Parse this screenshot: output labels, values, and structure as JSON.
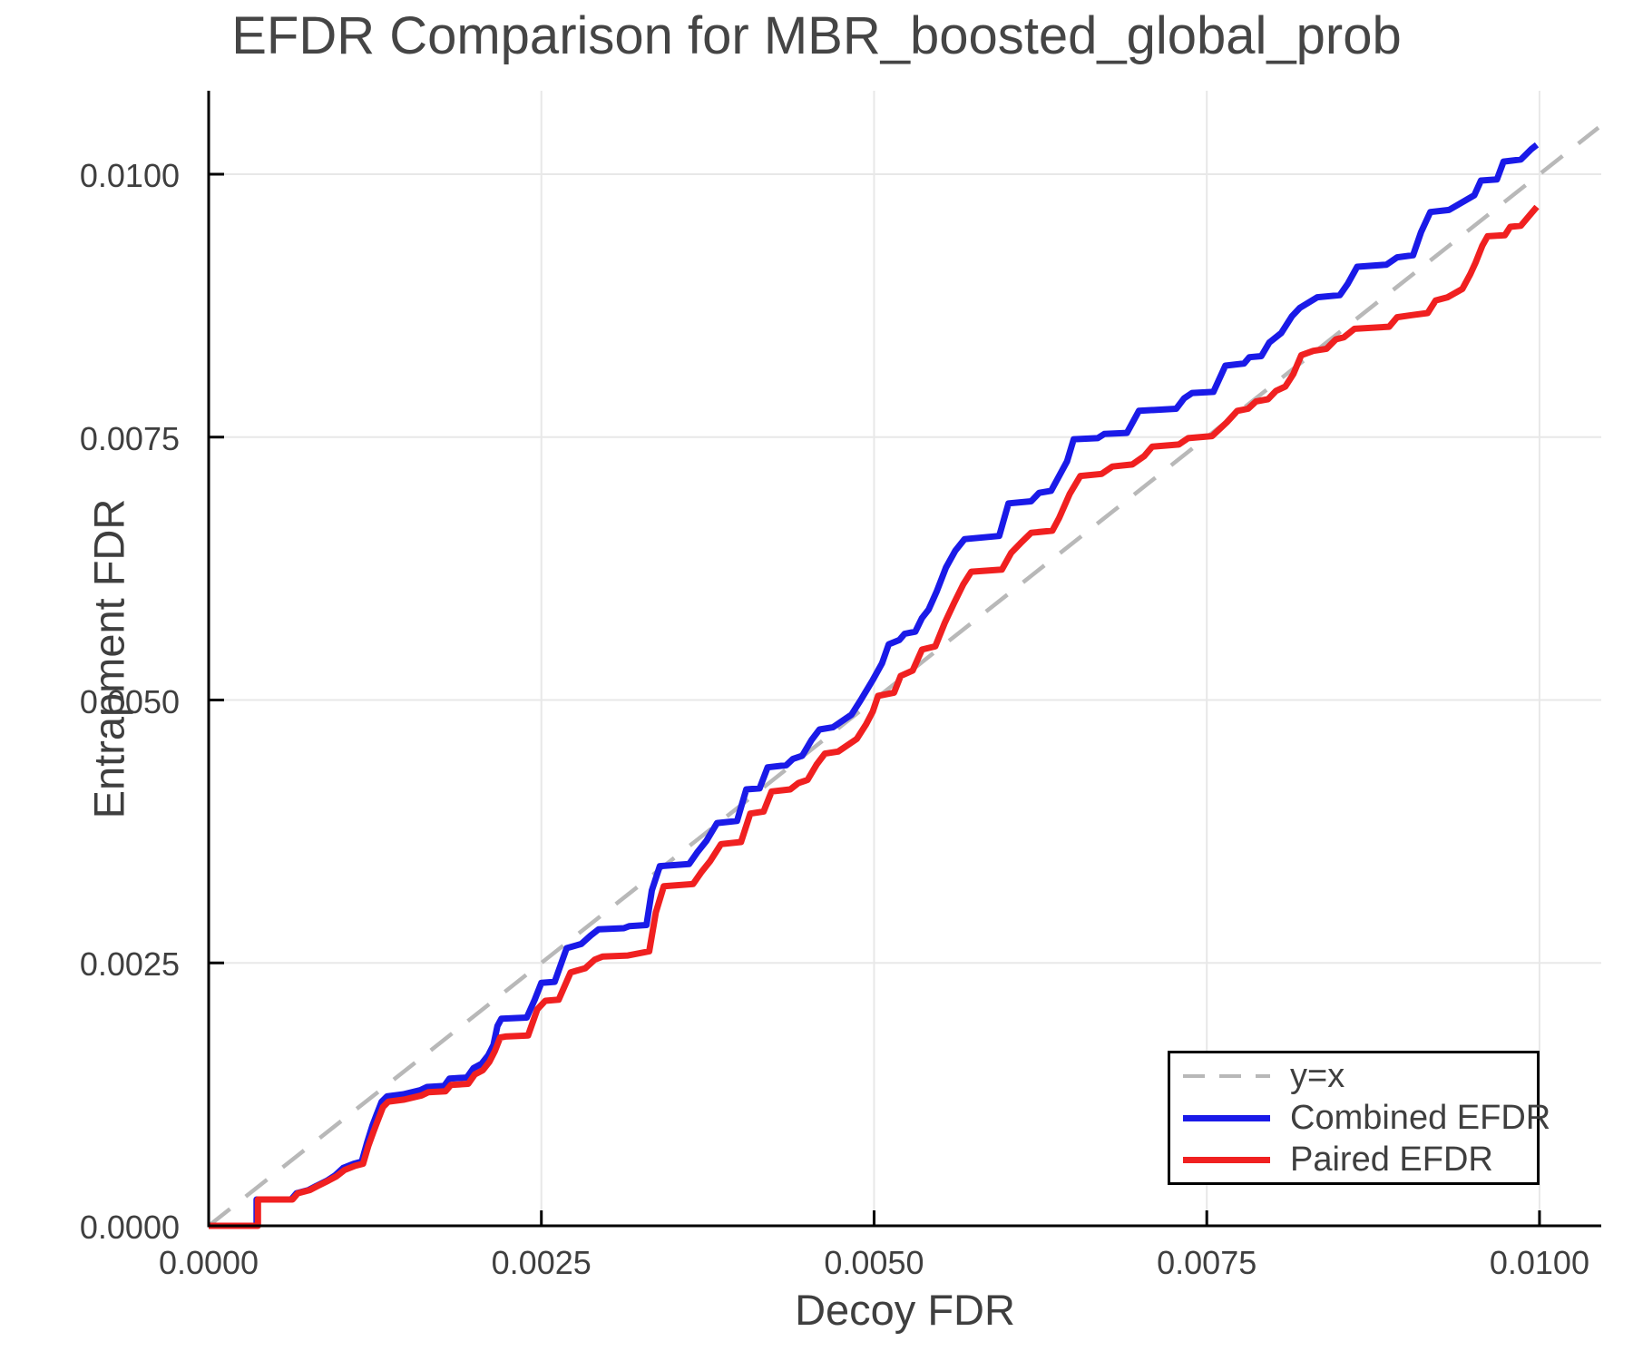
{
  "title": "EFDR Comparison for MBR_boosted_global_prob",
  "colors": {
    "combined": "#1a1ae8",
    "paired": "#f02020",
    "identity": "#b8b8b8",
    "grid": "#e8e8e8",
    "axis": "#000000",
    "text": "#3f3f3f"
  },
  "legend": {
    "entries": [
      "y=x",
      "Combined EFDR",
      "Paired EFDR"
    ]
  },
  "chart_data": {
    "type": "line",
    "title": "EFDR Comparison for MBR_boosted_global_prob",
    "xlabel": "Decoy FDR",
    "ylabel": "Entrapment FDR",
    "xlim": [
      0,
      0.010464
    ],
    "ylim": [
      0,
      0.010794
    ],
    "grid": true,
    "legend_position": "bottom-right",
    "x_ticks": [
      0,
      0.0025,
      0.005,
      0.0075,
      0.01
    ],
    "x_tick_labels": [
      "0.0000",
      "0.0025",
      "0.0050",
      "0.0075",
      "0.0100"
    ],
    "y_ticks": [
      0,
      0.0025,
      0.005,
      0.0075,
      0.01
    ],
    "y_tick_labels": [
      "0.0000",
      "0.0025",
      "0.0050",
      "0.0075",
      "0.0100"
    ],
    "series": [
      {
        "name": "y=x",
        "color": "#b8b8b8",
        "style": "dashed",
        "width": 4.5,
        "points": [
          [
            0,
            0
          ],
          [
            0.010443,
            0.010443
          ]
        ]
      },
      {
        "name": "Combined EFDR",
        "color": "#1a1ae8",
        "style": "solid",
        "width": 7,
        "points": [
          [
            0.0,
            0.0
          ],
          [
            0.00036,
            0.0
          ],
          [
            0.00036,
            0.00025
          ],
          [
            0.00062,
            0.00025
          ],
          [
            0.00066,
            0.00031
          ],
          [
            0.00075,
            0.00034
          ],
          [
            0.00081,
            0.00038
          ],
          [
            0.00089,
            0.00043
          ],
          [
            0.00095,
            0.00048
          ],
          [
            0.00101,
            0.00055
          ],
          [
            0.00109,
            0.00059
          ],
          [
            0.00115,
            0.00061
          ],
          [
            0.00119,
            0.00079
          ],
          [
            0.00123,
            0.00095
          ],
          [
            0.00126,
            0.00105
          ],
          [
            0.0013,
            0.00118
          ],
          [
            0.00134,
            0.00123
          ],
          [
            0.00146,
            0.00125
          ],
          [
            0.00159,
            0.00129
          ],
          [
            0.00164,
            0.00132
          ],
          [
            0.00177,
            0.00133
          ],
          [
            0.00181,
            0.0014
          ],
          [
            0.00194,
            0.00141
          ],
          [
            0.00199,
            0.0015
          ],
          [
            0.00205,
            0.00154
          ],
          [
            0.0021,
            0.00162
          ],
          [
            0.00214,
            0.00172
          ],
          [
            0.00217,
            0.0019
          ],
          [
            0.0022,
            0.00197
          ],
          [
            0.00239,
            0.00198
          ],
          [
            0.00245,
            0.00215
          ],
          [
            0.0025,
            0.00231
          ],
          [
            0.0026,
            0.00232
          ],
          [
            0.00269,
            0.00264
          ],
          [
            0.0028,
            0.00268
          ],
          [
            0.00287,
            0.00276
          ],
          [
            0.00293,
            0.00282
          ],
          [
            0.00312,
            0.00283
          ],
          [
            0.00316,
            0.00285
          ],
          [
            0.00329,
            0.00286
          ],
          [
            0.00333,
            0.00319
          ],
          [
            0.00339,
            0.00342
          ],
          [
            0.00361,
            0.00344
          ],
          [
            0.00367,
            0.00355
          ],
          [
            0.00374,
            0.00366
          ],
          [
            0.00382,
            0.00383
          ],
          [
            0.00397,
            0.00385
          ],
          [
            0.00404,
            0.00415
          ],
          [
            0.00414,
            0.00416
          ],
          [
            0.0042,
            0.00436
          ],
          [
            0.00434,
            0.00438
          ],
          [
            0.00439,
            0.00444
          ],
          [
            0.00446,
            0.00447
          ],
          [
            0.00453,
            0.00462
          ],
          [
            0.00459,
            0.00472
          ],
          [
            0.00469,
            0.00474
          ],
          [
            0.00483,
            0.00486
          ],
          [
            0.0049,
            0.005
          ],
          [
            0.00499,
            0.00519
          ],
          [
            0.00506,
            0.00535
          ],
          [
            0.00511,
            0.00553
          ],
          [
            0.00519,
            0.00557
          ],
          [
            0.00523,
            0.00563
          ],
          [
            0.00531,
            0.00565
          ],
          [
            0.00536,
            0.00578
          ],
          [
            0.00541,
            0.00586
          ],
          [
            0.00547,
            0.00603
          ],
          [
            0.00554,
            0.00626
          ],
          [
            0.00561,
            0.00642
          ],
          [
            0.00568,
            0.00653
          ],
          [
            0.00594,
            0.00656
          ],
          [
            0.00601,
            0.00687
          ],
          [
            0.00618,
            0.00689
          ],
          [
            0.00624,
            0.00697
          ],
          [
            0.00633,
            0.00699
          ],
          [
            0.00645,
            0.00727
          ],
          [
            0.0065,
            0.00748
          ],
          [
            0.00668,
            0.00749
          ],
          [
            0.00673,
            0.00753
          ],
          [
            0.0069,
            0.00754
          ],
          [
            0.00699,
            0.00775
          ],
          [
            0.00727,
            0.00777
          ],
          [
            0.00733,
            0.00787
          ],
          [
            0.00739,
            0.00792
          ],
          [
            0.00755,
            0.00793
          ],
          [
            0.00764,
            0.00818
          ],
          [
            0.00778,
            0.0082
          ],
          [
            0.00782,
            0.00826
          ],
          [
            0.00791,
            0.00827
          ],
          [
            0.00797,
            0.0084
          ],
          [
            0.00806,
            0.00849
          ],
          [
            0.00814,
            0.00865
          ],
          [
            0.0082,
            0.00873
          ],
          [
            0.00833,
            0.00883
          ],
          [
            0.0085,
            0.00885
          ],
          [
            0.00856,
            0.00896
          ],
          [
            0.00863,
            0.00912
          ],
          [
            0.00885,
            0.00914
          ],
          [
            0.00893,
            0.00921
          ],
          [
            0.00905,
            0.00923
          ],
          [
            0.00911,
            0.00945
          ],
          [
            0.00918,
            0.00964
          ],
          [
            0.00932,
            0.00966
          ],
          [
            0.00951,
            0.0098
          ],
          [
            0.00956,
            0.00994
          ],
          [
            0.00968,
            0.00995
          ],
          [
            0.00973,
            0.01012
          ],
          [
            0.00986,
            0.01014
          ],
          [
            0.00994,
            0.01024
          ],
          [
            0.00998,
            0.01028
          ]
        ]
      },
      {
        "name": "Paired EFDR",
        "color": "#f02020",
        "style": "solid",
        "width": 7,
        "points": [
          [
            0.0,
            0.0
          ],
          [
            0.00037,
            0.0
          ],
          [
            0.00037,
            0.00025
          ],
          [
            0.00063,
            0.00025
          ],
          [
            0.00067,
            0.00031
          ],
          [
            0.00076,
            0.00034
          ],
          [
            0.00082,
            0.00038
          ],
          [
            0.0009,
            0.00043
          ],
          [
            0.00096,
            0.00047
          ],
          [
            0.00102,
            0.00053
          ],
          [
            0.0011,
            0.00057
          ],
          [
            0.00116,
            0.00059
          ],
          [
            0.0012,
            0.00076
          ],
          [
            0.00124,
            0.0009
          ],
          [
            0.00127,
            0.001
          ],
          [
            0.00131,
            0.00113
          ],
          [
            0.00135,
            0.00118
          ],
          [
            0.00147,
            0.0012
          ],
          [
            0.0016,
            0.00124
          ],
          [
            0.00165,
            0.00127
          ],
          [
            0.00178,
            0.00128
          ],
          [
            0.00182,
            0.00134
          ],
          [
            0.00195,
            0.00135
          ],
          [
            0.002,
            0.00144
          ],
          [
            0.00206,
            0.00148
          ],
          [
            0.00211,
            0.00156
          ],
          [
            0.00215,
            0.00166
          ],
          [
            0.00219,
            0.00179
          ],
          [
            0.00223,
            0.0018
          ],
          [
            0.0024,
            0.00181
          ],
          [
            0.00247,
            0.00206
          ],
          [
            0.00253,
            0.00214
          ],
          [
            0.00263,
            0.00215
          ],
          [
            0.00272,
            0.00241
          ],
          [
            0.00283,
            0.00245
          ],
          [
            0.0029,
            0.00253
          ],
          [
            0.00296,
            0.00256
          ],
          [
            0.00315,
            0.00257
          ],
          [
            0.00331,
            0.00261
          ],
          [
            0.00336,
            0.00298
          ],
          [
            0.00342,
            0.00323
          ],
          [
            0.00364,
            0.00325
          ],
          [
            0.0037,
            0.00336
          ],
          [
            0.00377,
            0.00347
          ],
          [
            0.00385,
            0.00363
          ],
          [
            0.004,
            0.00365
          ],
          [
            0.00407,
            0.00392
          ],
          [
            0.00417,
            0.00394
          ],
          [
            0.00423,
            0.00413
          ],
          [
            0.00437,
            0.00415
          ],
          [
            0.00443,
            0.00421
          ],
          [
            0.0045,
            0.00424
          ],
          [
            0.00457,
            0.00439
          ],
          [
            0.00463,
            0.00449
          ],
          [
            0.00473,
            0.00451
          ],
          [
            0.00487,
            0.00463
          ],
          [
            0.00494,
            0.00477
          ],
          [
            0.00499,
            0.00489
          ],
          [
            0.00503,
            0.00504
          ],
          [
            0.00515,
            0.00507
          ],
          [
            0.0052,
            0.00523
          ],
          [
            0.00529,
            0.00528
          ],
          [
            0.00536,
            0.00548
          ],
          [
            0.00546,
            0.00551
          ],
          [
            0.00553,
            0.00573
          ],
          [
            0.0056,
            0.00592
          ],
          [
            0.00567,
            0.0061
          ],
          [
            0.00573,
            0.00622
          ],
          [
            0.00596,
            0.00624
          ],
          [
            0.00603,
            0.0064
          ],
          [
            0.0061,
            0.00649
          ],
          [
            0.00618,
            0.00659
          ],
          [
            0.00634,
            0.00661
          ],
          [
            0.00639,
            0.00673
          ],
          [
            0.00647,
            0.00696
          ],
          [
            0.00655,
            0.00713
          ],
          [
            0.00671,
            0.00715
          ],
          [
            0.00679,
            0.00722
          ],
          [
            0.00694,
            0.00724
          ],
          [
            0.00703,
            0.00732
          ],
          [
            0.00709,
            0.00741
          ],
          [
            0.00729,
            0.00743
          ],
          [
            0.00736,
            0.00749
          ],
          [
            0.00754,
            0.00751
          ],
          [
            0.00765,
            0.00764
          ],
          [
            0.00773,
            0.00775
          ],
          [
            0.00781,
            0.00777
          ],
          [
            0.00787,
            0.00784
          ],
          [
            0.00796,
            0.00786
          ],
          [
            0.00802,
            0.00794
          ],
          [
            0.00809,
            0.00798
          ],
          [
            0.00815,
            0.0081
          ],
          [
            0.00821,
            0.00828
          ],
          [
            0.0083,
            0.00832
          ],
          [
            0.0084,
            0.00834
          ],
          [
            0.00847,
            0.00843
          ],
          [
            0.00853,
            0.00845
          ],
          [
            0.00861,
            0.00853
          ],
          [
            0.00887,
            0.00855
          ],
          [
            0.00893,
            0.00864
          ],
          [
            0.00904,
            0.00866
          ],
          [
            0.00916,
            0.00868
          ],
          [
            0.00922,
            0.0088
          ],
          [
            0.00931,
            0.00883
          ],
          [
            0.00942,
            0.00891
          ],
          [
            0.00948,
            0.00905
          ],
          [
            0.00952,
            0.00916
          ],
          [
            0.00957,
            0.00932
          ],
          [
            0.00961,
            0.00941
          ],
          [
            0.00974,
            0.00942
          ],
          [
            0.00978,
            0.0095
          ],
          [
            0.00986,
            0.00951
          ],
          [
            0.00994,
            0.00963
          ],
          [
            0.00998,
            0.00969
          ]
        ]
      }
    ]
  }
}
